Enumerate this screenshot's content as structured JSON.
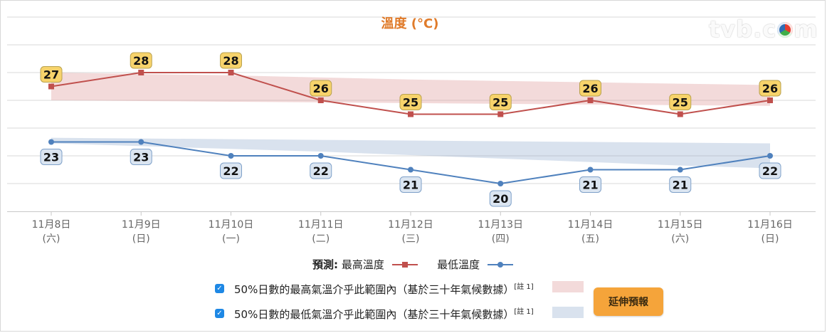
{
  "chart_data": {
    "type": "line",
    "title": "溫度 (°C)",
    "categories": [
      [
        "11月8日",
        "(六)"
      ],
      [
        "11月9日",
        "(日)"
      ],
      [
        "11月10日",
        "(一)"
      ],
      [
        "11月11日",
        "(二)"
      ],
      [
        "11月12日",
        "(三)"
      ],
      [
        "11月13日",
        "(四)"
      ],
      [
        "11月14日",
        "(五)"
      ],
      [
        "11月15日",
        "(六)"
      ],
      [
        "11月16日",
        "(日)"
      ]
    ],
    "series": [
      {
        "name": "最高溫度",
        "values": [
          27,
          28,
          28,
          26,
          25,
          25,
          26,
          25,
          26
        ],
        "color": "#c0504d",
        "marker": "square"
      },
      {
        "name": "最低溫度",
        "values": [
          23,
          23,
          22,
          22,
          21,
          20,
          21,
          21,
          22
        ],
        "color": "#4f81bd",
        "marker": "circle"
      }
    ],
    "bands": [
      {
        "name": "50%日數的最高氣溫介乎此範圍內",
        "low": [
          26.0,
          25.95,
          25.9,
          25.85,
          25.8,
          25.75,
          25.7,
          25.65,
          25.6
        ],
        "high": [
          28.0,
          27.9,
          27.8,
          27.65,
          27.5,
          27.4,
          27.3,
          27.2,
          27.1
        ],
        "color": "rgba(220,150,150,0.35)"
      },
      {
        "name": "50%日數的最低氣溫介乎此範圍內",
        "low": [
          22.9,
          22.7,
          22.5,
          22.3,
          22.05,
          21.8,
          21.55,
          21.3,
          21.1
        ],
        "high": [
          23.3,
          23.25,
          23.2,
          23.15,
          23.1,
          23.05,
          23.0,
          22.95,
          22.9
        ],
        "color": "rgba(130,160,200,0.30)"
      }
    ],
    "ylim": [
      18,
      32
    ],
    "grid": true,
    "label_colors": {
      "high_fill": "#f7d36b",
      "high_border": "#b9a24f",
      "low_fill": "#dbe5f1",
      "low_border": "#7fa1c9"
    }
  },
  "legend": {
    "title": "預測:",
    "max_label": "最高溫度",
    "min_label": "最低溫度"
  },
  "checkboxes": [
    {
      "label": "50%日數的最高氣溫介乎此範圍內（基於三十年氣候數據）",
      "note": "[註 1]",
      "checked": true
    },
    {
      "label": "50%日數的最低氣溫介乎此範圍內（基於三十年氣候數據）",
      "note": "[註 1]",
      "checked": true
    }
  ],
  "button": {
    "label": "延伸預報"
  },
  "logo": {
    "text_left": "tvb.c",
    "text_right": "m"
  },
  "colors": {
    "title": "#e07b2a",
    "button": "#f5a43a",
    "checkbox": "#1e88e5"
  }
}
